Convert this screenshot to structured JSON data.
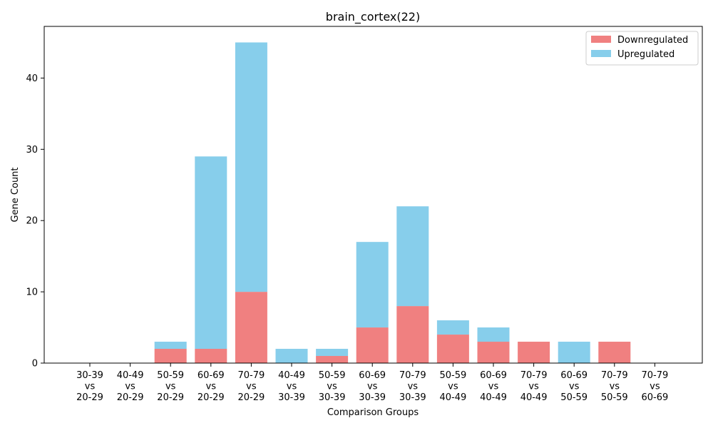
{
  "chart_data": {
    "type": "bar",
    "stacked": true,
    "title": "brain_cortex(22)",
    "xlabel": "Comparison Groups",
    "ylabel": "Gene Count",
    "ylim": [
      0,
      47.25
    ],
    "yticks": [
      0,
      10,
      20,
      30,
      40
    ],
    "grid": false,
    "legend_position": "top-right",
    "categories": [
      [
        "30-39",
        "vs",
        "20-29"
      ],
      [
        "40-49",
        "vs",
        "20-29"
      ],
      [
        "50-59",
        "vs",
        "20-29"
      ],
      [
        "60-69",
        "vs",
        "20-29"
      ],
      [
        "70-79",
        "vs",
        "20-29"
      ],
      [
        "40-49",
        "vs",
        "30-39"
      ],
      [
        "50-59",
        "vs",
        "30-39"
      ],
      [
        "60-69",
        "vs",
        "30-39"
      ],
      [
        "70-79",
        "vs",
        "30-39"
      ],
      [
        "50-59",
        "vs",
        "40-49"
      ],
      [
        "60-69",
        "vs",
        "40-49"
      ],
      [
        "70-79",
        "vs",
        "40-49"
      ],
      [
        "60-69",
        "vs",
        "50-59"
      ],
      [
        "70-79",
        "vs",
        "50-59"
      ],
      [
        "70-79",
        "vs",
        "60-69"
      ]
    ],
    "series": [
      {
        "name": "Downregulated",
        "color": "#f08080",
        "values": [
          0,
          0,
          2,
          2,
          10,
          0,
          1,
          5,
          8,
          4,
          3,
          3,
          0,
          3,
          0
        ]
      },
      {
        "name": "Upregulated",
        "color": "#87ceeb",
        "values": [
          0,
          0,
          1,
          27,
          35,
          2,
          1,
          12,
          14,
          2,
          2,
          0,
          3,
          0,
          0
        ]
      }
    ]
  }
}
